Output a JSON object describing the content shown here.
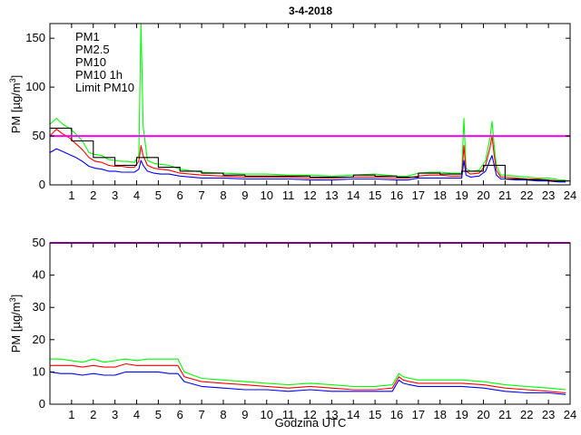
{
  "title": "3-4-2018",
  "chart_data": [
    {
      "type": "line",
      "title": "3-4-2018",
      "xlabel": "",
      "ylabel": "PM [µg/m³]",
      "ylabel_base": "PM [µg/m",
      "ylabel_sup": "3",
      "ylabel_end": "]",
      "xlim": [
        0,
        24
      ],
      "ylim": [
        0,
        165
      ],
      "yticks": [
        0,
        50,
        100,
        150
      ],
      "xticks": [
        1,
        2,
        3,
        4,
        5,
        6,
        7,
        8,
        9,
        10,
        11,
        12,
        13,
        14,
        15,
        16,
        17,
        18,
        19,
        20,
        21,
        22,
        23,
        24
      ],
      "legend": {
        "placement": "top-left",
        "entries": [
          {
            "name": "PM1",
            "color": "#0000ff"
          },
          {
            "name": "PM2.5",
            "color": "#ff0000"
          },
          {
            "name": "PM10",
            "color": "#00ff00"
          },
          {
            "name": "PM10 1h",
            "color": "#000000"
          },
          {
            "name": "Limit PM10",
            "color": "#ff00ff"
          }
        ]
      },
      "series": [
        {
          "name": "PM10",
          "color": "#00ff00",
          "x": [
            0,
            0.3,
            0.6,
            0.9,
            1.2,
            1.5,
            1.8,
            2.1,
            2.4,
            2.7,
            3.0,
            3.3,
            3.6,
            3.9,
            4.1,
            4.2,
            4.3,
            4.5,
            4.8,
            5.1,
            5.5,
            6.0,
            7.0,
            8.0,
            9.0,
            10.0,
            11.0,
            12.0,
            13.0,
            14.0,
            15.0,
            16.0,
            16.5,
            17.0,
            17.5,
            18.0,
            18.5,
            19.0,
            19.1,
            19.2,
            19.4,
            19.8,
            20.1,
            20.3,
            20.4,
            20.5,
            20.6,
            20.8,
            21.0,
            21.5,
            22.0,
            22.5,
            23.0,
            23.5,
            23.8
          ],
          "y": [
            62,
            68,
            62,
            58,
            52,
            45,
            33,
            31,
            30,
            26,
            25,
            24,
            24,
            23,
            30,
            165,
            60,
            25,
            22,
            21,
            20,
            16,
            13,
            12,
            11,
            11,
            10,
            10,
            9,
            10,
            11,
            9,
            9,
            12,
            13,
            13,
            12,
            12,
            68,
            17,
            14,
            15,
            25,
            48,
            65,
            40,
            20,
            10,
            10,
            9,
            8,
            7,
            7,
            5,
            5
          ]
        },
        {
          "name": "PM2.5",
          "color": "#ff0000",
          "x": [
            0,
            0.3,
            0.6,
            0.9,
            1.2,
            1.5,
            1.8,
            2.1,
            2.4,
            2.7,
            3.0,
            3.3,
            3.6,
            3.9,
            4.1,
            4.2,
            4.3,
            4.5,
            4.8,
            5.1,
            5.5,
            6.0,
            7.0,
            8.0,
            9.0,
            10.0,
            11.0,
            12.0,
            13.0,
            14.0,
            15.0,
            16.0,
            16.5,
            17.0,
            17.5,
            18.0,
            18.5,
            19.0,
            19.1,
            19.2,
            19.4,
            19.8,
            20.1,
            20.3,
            20.4,
            20.5,
            20.6,
            20.8,
            21.0,
            21.5,
            22.0,
            22.5,
            23.0,
            23.5,
            23.8
          ],
          "y": [
            50,
            57,
            52,
            48,
            42,
            36,
            28,
            24,
            23,
            20,
            19,
            19,
            18,
            18,
            24,
            40,
            30,
            20,
            17,
            16,
            15,
            12,
            10,
            9,
            8,
            8,
            8,
            7,
            7,
            8,
            8,
            7,
            7,
            9,
            10,
            10,
            9,
            9,
            40,
            14,
            11,
            12,
            20,
            38,
            50,
            30,
            15,
            8,
            8,
            7,
            6,
            6,
            5,
            4,
            4
          ]
        },
        {
          "name": "PM1",
          "color": "#0000ff",
          "x": [
            0,
            0.3,
            0.6,
            0.9,
            1.2,
            1.5,
            1.8,
            2.1,
            2.4,
            2.7,
            3.0,
            3.3,
            3.6,
            3.9,
            4.1,
            4.2,
            4.3,
            4.5,
            4.8,
            5.1,
            5.5,
            6.0,
            7.0,
            8.0,
            9.0,
            10.0,
            11.0,
            12.0,
            13.0,
            14.0,
            15.0,
            16.0,
            16.5,
            17.0,
            17.5,
            18.0,
            18.5,
            19.0,
            19.1,
            19.2,
            19.4,
            19.8,
            20.1,
            20.3,
            20.4,
            20.5,
            20.6,
            20.8,
            21.0,
            21.5,
            22.0,
            22.5,
            23.0,
            23.5,
            23.8
          ],
          "y": [
            33,
            37,
            34,
            31,
            28,
            24,
            19,
            17,
            16,
            14,
            14,
            13,
            13,
            13,
            16,
            25,
            20,
            14,
            12,
            11,
            11,
            9,
            7,
            7,
            6,
            6,
            6,
            5,
            5,
            6,
            6,
            5,
            5,
            7,
            7,
            7,
            7,
            7,
            25,
            10,
            8,
            9,
            14,
            25,
            30,
            20,
            10,
            6,
            6,
            5,
            5,
            4,
            4,
            3,
            3
          ]
        },
        {
          "name": "PM10 1h",
          "color": "#000000",
          "step": true,
          "x": [
            0,
            1,
            2,
            3,
            4,
            5,
            6,
            7,
            8,
            9,
            10,
            11,
            12,
            13,
            14,
            15,
            16,
            17,
            18,
            19,
            20,
            21,
            22,
            23,
            24
          ],
          "y": [
            58,
            45,
            28,
            20,
            28,
            18,
            14,
            12,
            10,
            9,
            9,
            9,
            8,
            8,
            10,
            9,
            8,
            12,
            11,
            14,
            20,
            6,
            5,
            4,
            4
          ]
        },
        {
          "name": "Limit PM10",
          "color": "#ff00ff",
          "x": [
            0,
            24
          ],
          "y": [
            50,
            50
          ]
        }
      ]
    },
    {
      "type": "line",
      "title": "",
      "xlabel": "Godzina UTC",
      "ylabel": "PM [µg/m³]",
      "ylabel_base": "PM [µg/m",
      "ylabel_sup": "3",
      "ylabel_end": "]",
      "xlim": [
        0,
        24
      ],
      "ylim": [
        0,
        50
      ],
      "yticks": [
        0,
        10,
        20,
        30,
        40,
        50
      ],
      "xticks": [
        1,
        2,
        3,
        4,
        5,
        6,
        7,
        8,
        9,
        10,
        11,
        12,
        13,
        14,
        15,
        16,
        17,
        18,
        19,
        20,
        21,
        22,
        23,
        24
      ],
      "series": [
        {
          "name": "PM10",
          "color": "#00ff00",
          "x": [
            0,
            0.5,
            1.0,
            1.5,
            2.0,
            2.5,
            3.0,
            3.5,
            4.0,
            4.5,
            5.0,
            5.5,
            5.9,
            6.2,
            7.0,
            8.0,
            9.0,
            10.0,
            11.0,
            12.0,
            13.0,
            14.0,
            15.0,
            15.8,
            16.1,
            16.3,
            16.6,
            17.0,
            18.0,
            19.0,
            20.0,
            21.0,
            22.0,
            23.0,
            23.8
          ],
          "y": [
            14,
            14,
            13.5,
            13,
            14,
            13,
            13.5,
            14,
            13.5,
            14,
            14,
            14,
            14,
            10,
            8,
            7.5,
            7,
            6.5,
            6,
            6.5,
            6,
            5.5,
            5.5,
            6,
            9.5,
            8.5,
            8,
            7.5,
            7.5,
            7.5,
            7,
            6,
            5.5,
            5,
            4.5
          ]
        },
        {
          "name": "PM2.5",
          "color": "#ff0000",
          "x": [
            0,
            0.5,
            1.0,
            1.5,
            2.0,
            2.5,
            3.0,
            3.5,
            4.0,
            4.5,
            5.0,
            5.5,
            5.9,
            6.2,
            7.0,
            8.0,
            9.0,
            10.0,
            11.0,
            12.0,
            13.0,
            14.0,
            15.0,
            15.8,
            16.1,
            16.3,
            16.6,
            17.0,
            18.0,
            19.0,
            20.0,
            21.0,
            22.0,
            23.0,
            23.8
          ],
          "y": [
            12,
            12,
            12,
            11.5,
            12,
            11.5,
            11.5,
            12.5,
            12,
            12,
            12,
            12,
            12,
            8.5,
            7,
            6.5,
            6,
            5.5,
            5,
            5.5,
            5,
            4.5,
            4.5,
            5,
            8.5,
            7.5,
            7,
            6.5,
            6.5,
            6.5,
            6,
            5,
            4.5,
            4,
            3.5
          ]
        },
        {
          "name": "PM1",
          "color": "#0000ff",
          "x": [
            0,
            0.5,
            1.0,
            1.5,
            2.0,
            2.5,
            3.0,
            3.5,
            4.0,
            4.5,
            5.0,
            5.5,
            5.9,
            6.2,
            7.0,
            8.0,
            9.0,
            10.0,
            11.0,
            12.0,
            13.0,
            14.0,
            15.0,
            15.8,
            16.1,
            16.3,
            16.6,
            17.0,
            18.0,
            19.0,
            20.0,
            21.0,
            22.0,
            23.0,
            23.8
          ],
          "y": [
            10,
            9.5,
            9.5,
            9,
            9.5,
            9,
            9,
            10,
            10,
            10,
            10,
            9.5,
            9.5,
            7,
            5.5,
            5,
            4.5,
            4.5,
            4,
            4.5,
            4,
            4,
            4,
            4,
            7.5,
            6.5,
            6,
            5.5,
            5.5,
            5.5,
            5,
            4,
            3.5,
            3.5,
            3
          ]
        },
        {
          "name": "Limit PM10",
          "color": "#ff00ff",
          "x": [
            0,
            24
          ],
          "y": [
            50,
            50
          ]
        }
      ]
    }
  ]
}
